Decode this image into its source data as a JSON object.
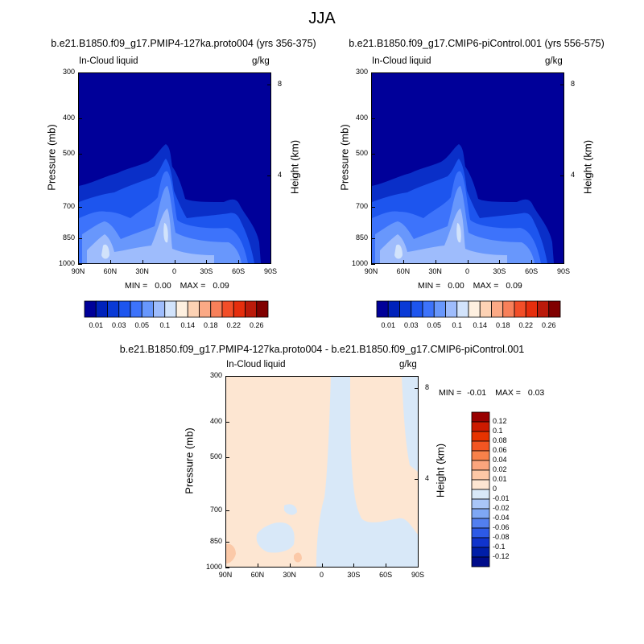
{
  "figure": {
    "title": "JJA"
  },
  "colors": {
    "fill_zero": "#000099",
    "diff_pos": "#fde6d2",
    "diff_neg": "#d8e8f8",
    "diff_pos_strong": "#fbc9a8"
  },
  "panels": [
    {
      "title": "b.e21.B1850.f09_g17.PMIP4-127ka.proto004 (yrs 356-375)",
      "left_label": "In-Cloud liquid",
      "right_label": "g/kg",
      "ylabel": "Pressure (mb)",
      "ylabel_right": "Height (km)",
      "min_label": "MIN =",
      "min_value": "0.00",
      "max_label": "MAX =",
      "max_value": "0.09"
    },
    {
      "title": "b.e21.B1850.f09_g17.CMIP6-piControl.001 (yrs 556-575)",
      "left_label": "In-Cloud liquid",
      "right_label": "g/kg",
      "ylabel": "Pressure (mb)",
      "ylabel_right": "Height (km)",
      "min_label": "MIN =",
      "min_value": "0.00",
      "max_label": "MAX =",
      "max_value": "0.09"
    },
    {
      "title": "b.e21.B1850.f09_g17.PMIP4-127ka.proto004 - b.e21.B1850.f09_g17.CMIP6-piControl.001",
      "left_label": "In-Cloud liquid",
      "right_label": "g/kg",
      "ylabel": "Pressure (mb)",
      "ylabel_right": "Height (km)",
      "min_label": "MIN =",
      "min_value": "-0.01",
      "max_label": "MAX =",
      "max_value": "0.03"
    }
  ],
  "chart_data": {
    "type": "heatmap",
    "x_ticks": [
      "90N",
      "60N",
      "30N",
      "0",
      "30S",
      "60S",
      "90S"
    ],
    "y_ticks": [
      "300",
      "400",
      "500",
      "700",
      "850",
      "1000"
    ],
    "y_tick_values": [
      300,
      400,
      500,
      700,
      850,
      1000
    ],
    "yright_ticks": [
      "8",
      "4"
    ],
    "yright_values": [
      8,
      4
    ],
    "xlim": [
      90,
      -90
    ],
    "ylim": [
      1000,
      300
    ],
    "y_scale": "log",
    "horizontal_colorbar": {
      "labels": [
        "0.01",
        "0.03",
        "0.05",
        "0.1",
        "0.14",
        "0.18",
        "0.22",
        "0.26"
      ],
      "colors": [
        "#000099",
        "#0022bb",
        "#0a3ad6",
        "#1d55ee",
        "#3d73fb",
        "#6897fc",
        "#9ebcfc",
        "#d2e3fb",
        "#fef0e0",
        "#fdd2b4",
        "#fba985",
        "#f7805a",
        "#f24e28",
        "#e62e0d",
        "#bb1a0a",
        "#800000"
      ]
    },
    "vertical_colorbar": {
      "labels": [
        "0.12",
        "0.1",
        "0.08",
        "0.06",
        "0.04",
        "0.02",
        "0.01",
        "0",
        "-0.01",
        "-0.02",
        "-0.04",
        "-0.06",
        "-0.08",
        "-0.1",
        "-0.12"
      ],
      "colors": [
        "#990000",
        "#cc1a00",
        "#e63300",
        "#f25522",
        "#f7814a",
        "#fba57d",
        "#fdc8a6",
        "#fde6d2",
        "#d8e8f8",
        "#a9c6f8",
        "#7ea7f5",
        "#527ff0",
        "#2d5ae6",
        "#1034cc",
        "#001ea8",
        "#000c8a"
      ]
    }
  }
}
